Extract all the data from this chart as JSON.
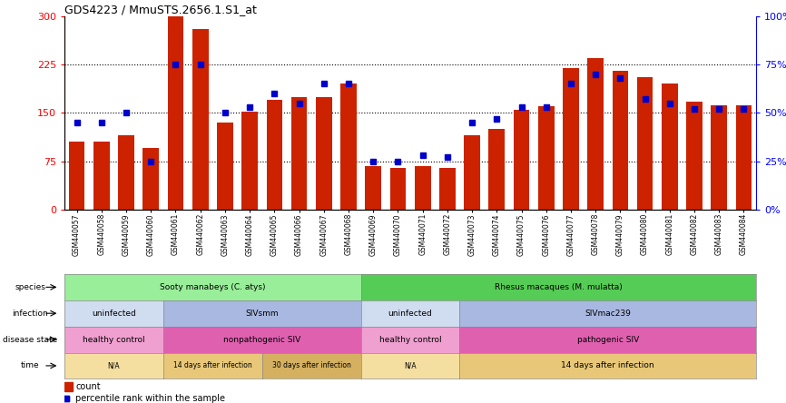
{
  "title": "GDS4223 / MmuSTS.2656.1.S1_at",
  "samples": [
    "GSM440057",
    "GSM440058",
    "GSM440059",
    "GSM440060",
    "GSM440061",
    "GSM440062",
    "GSM440063",
    "GSM440064",
    "GSM440065",
    "GSM440066",
    "GSM440067",
    "GSM440068",
    "GSM440069",
    "GSM440070",
    "GSM440071",
    "GSM440072",
    "GSM440073",
    "GSM440074",
    "GSM440075",
    "GSM440076",
    "GSM440077",
    "GSM440078",
    "GSM440079",
    "GSM440080",
    "GSM440081",
    "GSM440082",
    "GSM440083",
    "GSM440084"
  ],
  "counts": [
    105,
    105,
    115,
    95,
    300,
    280,
    135,
    152,
    170,
    175,
    175,
    195,
    68,
    65,
    68,
    65,
    115,
    125,
    155,
    160,
    220,
    235,
    215,
    205,
    195,
    168,
    162,
    162
  ],
  "percentile": [
    45,
    45,
    50,
    25,
    75,
    75,
    50,
    53,
    60,
    55,
    65,
    65,
    25,
    25,
    28,
    27,
    45,
    47,
    53,
    53,
    65,
    70,
    68,
    57,
    55,
    52,
    52,
    52
  ],
  "bar_color": "#cc2200",
  "dot_color": "#0000cc",
  "ylim_left": [
    0,
    300
  ],
  "yticks_left": [
    0,
    75,
    150,
    225,
    300
  ],
  "ytick_labels_left": [
    "0",
    "75",
    "150",
    "225",
    "300"
  ],
  "yticks_right": [
    0,
    25,
    50,
    75,
    100
  ],
  "ytick_labels_right": [
    "0%",
    "25%",
    "50%",
    "75%",
    "100%"
  ],
  "hline_values": [
    75,
    150,
    225
  ],
  "species_groups": [
    {
      "label": "Sooty manabeys (C. atys)",
      "start": 0,
      "end": 12,
      "color": "#99ee99"
    },
    {
      "label": "Rhesus macaques (M. mulatta)",
      "start": 12,
      "end": 28,
      "color": "#55cc55"
    }
  ],
  "infection_groups": [
    {
      "label": "uninfected",
      "start": 0,
      "end": 4,
      "color": "#d0dcf0"
    },
    {
      "label": "SIVsmm",
      "start": 4,
      "end": 12,
      "color": "#a8b8e0"
    },
    {
      "label": "uninfected",
      "start": 12,
      "end": 16,
      "color": "#d0dcf0"
    },
    {
      "label": "SIVmac239",
      "start": 16,
      "end": 28,
      "color": "#a8b8e0"
    }
  ],
  "disease_groups": [
    {
      "label": "healthy control",
      "start": 0,
      "end": 4,
      "color": "#f0a0d0"
    },
    {
      "label": "nonpathogenic SIV",
      "start": 4,
      "end": 12,
      "color": "#e060b0"
    },
    {
      "label": "healthy control",
      "start": 12,
      "end": 16,
      "color": "#f0a0d0"
    },
    {
      "label": "pathogenic SIV",
      "start": 16,
      "end": 28,
      "color": "#e060b0"
    }
  ],
  "time_groups": [
    {
      "label": "N/A",
      "start": 0,
      "end": 4,
      "color": "#f5dfa0"
    },
    {
      "label": "14 days after infection",
      "start": 4,
      "end": 8,
      "color": "#e8c878"
    },
    {
      "label": "30 days after infection",
      "start": 8,
      "end": 12,
      "color": "#d4b060"
    },
    {
      "label": "N/A",
      "start": 12,
      "end": 16,
      "color": "#f5dfa0"
    },
    {
      "label": "14 days after infection",
      "start": 16,
      "end": 28,
      "color": "#e8c878"
    }
  ],
  "row_labels": [
    "species",
    "infection",
    "disease state",
    "time"
  ],
  "bg_color": "#ffffff"
}
